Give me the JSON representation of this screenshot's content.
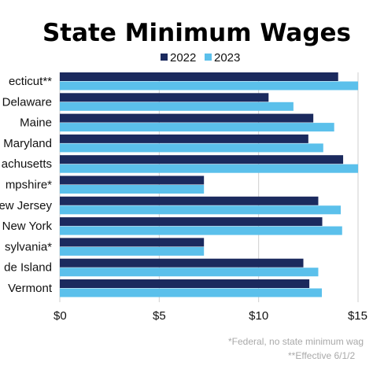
{
  "chart_data": {
    "type": "bar",
    "orientation": "horizontal",
    "title": "State Minimum Wages",
    "categories": [
      "Connecticut**",
      "Delaware",
      "Maine",
      "Maryland",
      "Massachusetts",
      "New Hampshire*",
      "New Jersey",
      "New York",
      "Pennsylvania*",
      "Rhode Island",
      "Vermont"
    ],
    "category_labels_visible": [
      "ecticut**",
      "Delaware",
      "Maine",
      "Maryland",
      "achusetts",
      "mpshire*",
      "ew Jersey",
      "New York",
      "sylvania*",
      "de Island",
      "Vermont"
    ],
    "series": [
      {
        "name": "2022",
        "color": "#1b2a5e",
        "values": [
          14.0,
          10.5,
          12.75,
          12.5,
          14.25,
          7.25,
          13.0,
          13.2,
          7.25,
          12.25,
          12.55
        ]
      },
      {
        "name": "2023",
        "color": "#5bc0eb",
        "values": [
          15.0,
          11.75,
          13.8,
          13.25,
          15.0,
          7.25,
          14.13,
          14.2,
          7.25,
          13.0,
          13.18
        ]
      }
    ],
    "xlim": [
      0,
      15
    ],
    "xticks": [
      0,
      5,
      10,
      15
    ],
    "xtick_labels": [
      "$0",
      "$5",
      "$10",
      "$15"
    ],
    "xlabel": "",
    "ylabel": "",
    "grid": true,
    "legend_position": "top",
    "footnotes": [
      "*Federal, no state minimum wag",
      "**Effective 6/1/2"
    ]
  }
}
